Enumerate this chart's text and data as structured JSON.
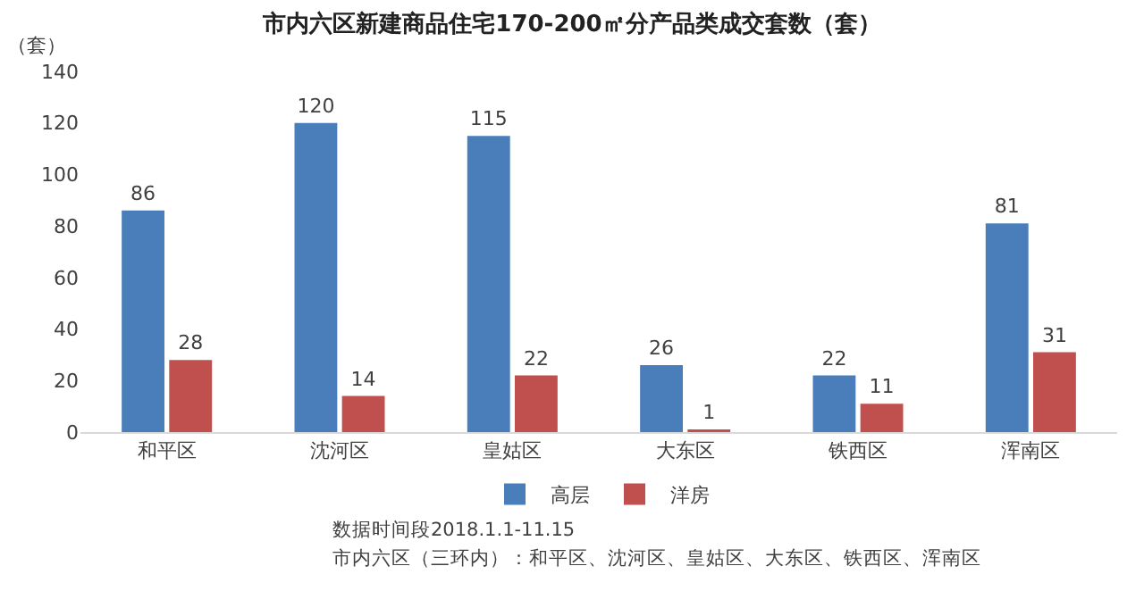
{
  "chart_data": {
    "type": "bar",
    "title": "市内六区新建商品住宅170-200㎡分产品类成交套数（套）",
    "ylabel": "（套）",
    "categories": [
      "和平区",
      "沈河区",
      "皇姑区",
      "大东区",
      "铁西区",
      "浑南区"
    ],
    "series": [
      {
        "name": "高层",
        "color": "#4a7ebb",
        "values": [
          86,
          120,
          115,
          26,
          22,
          81
        ]
      },
      {
        "name": "洋房",
        "color": "#c0504d",
        "values": [
          28,
          14,
          22,
          1,
          11,
          31
        ]
      }
    ],
    "ylim": [
      0,
      140
    ],
    "yticks": [
      0,
      20,
      40,
      60,
      80,
      100,
      120,
      140
    ],
    "grid": false,
    "legend": "bottom",
    "data_labels": true,
    "annotations": [
      "数据时间段2018.1.1-11.15",
      "市内六区（三环内）：和平区、沈河区、皇姑区、大东区、铁西区、浑南区"
    ]
  }
}
